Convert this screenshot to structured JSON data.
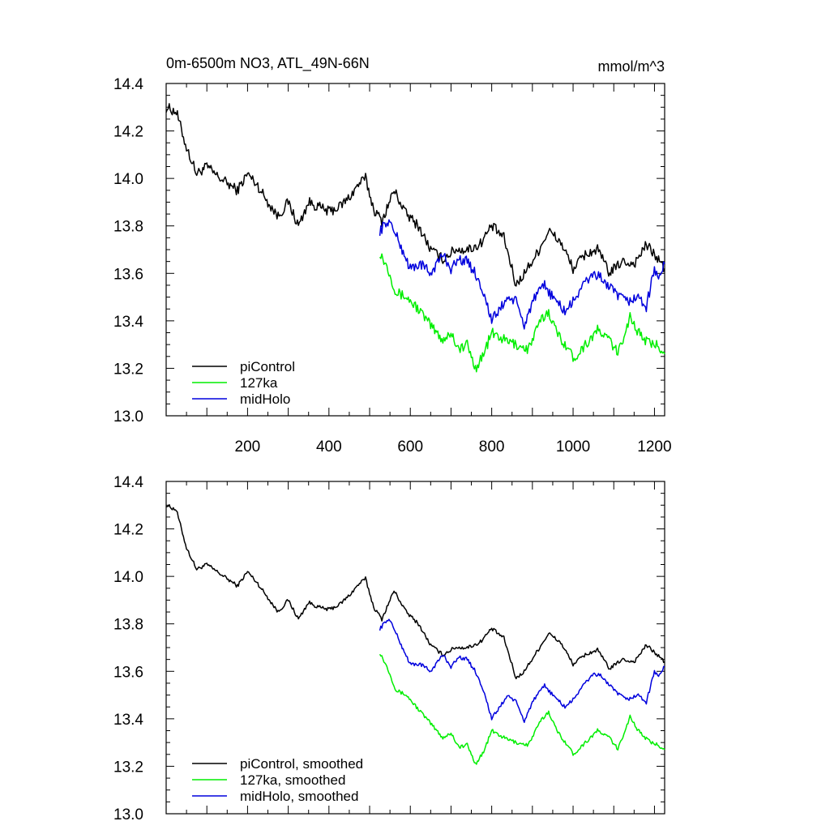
{
  "chart_data": [
    {
      "type": "line",
      "title": "0m-6500m NO3, ATL_49N-66N",
      "units_label": "mmol/m^3",
      "xlim": [
        0,
        1225
      ],
      "ylim": [
        13.0,
        14.4
      ],
      "x_ticks": [
        200,
        400,
        600,
        800,
        1000,
        1200
      ],
      "y_ticks": [
        13.0,
        13.2,
        13.4,
        13.6,
        13.8,
        14.0,
        14.2,
        14.4
      ],
      "legend_position": "bottom-left",
      "series": [
        {
          "name": "piControl",
          "color": "#000000",
          "x": [
            0,
            25,
            50,
            75,
            100,
            125,
            150,
            175,
            200,
            225,
            250,
            275,
            300,
            325,
            350,
            375,
            400,
            425,
            450,
            475,
            490,
            510,
            530,
            560,
            590,
            620,
            650,
            680,
            710,
            740,
            770,
            800,
            830,
            860,
            880,
            910,
            940,
            970,
            1000,
            1030,
            1060,
            1090,
            1120,
            1150,
            1180,
            1200,
            1225
          ],
          "y": [
            14.3,
            14.28,
            14.13,
            14.02,
            14.05,
            14.01,
            13.98,
            13.95,
            14.02,
            13.97,
            13.9,
            13.84,
            13.9,
            13.8,
            13.9,
            13.88,
            13.86,
            13.88,
            13.92,
            13.98,
            14.0,
            13.87,
            13.82,
            13.95,
            13.85,
            13.8,
            13.7,
            13.66,
            13.7,
            13.7,
            13.72,
            13.8,
            13.75,
            13.55,
            13.6,
            13.68,
            13.78,
            13.73,
            13.62,
            13.68,
            13.7,
            13.6,
            13.65,
            13.64,
            13.72,
            13.68,
            13.62
          ]
        },
        {
          "name": "127ka",
          "color": "#00ee00",
          "x": [
            525,
            545,
            565,
            590,
            620,
            650,
            680,
            700,
            720,
            740,
            760,
            780,
            800,
            830,
            860,
            890,
            920,
            940,
            960,
            990,
            1000,
            1030,
            1060,
            1090,
            1110,
            1140,
            1160,
            1190,
            1210,
            1225
          ],
          "y": [
            13.69,
            13.62,
            13.52,
            13.5,
            13.45,
            13.38,
            13.32,
            13.35,
            13.28,
            13.3,
            13.2,
            13.26,
            13.35,
            13.32,
            13.3,
            13.28,
            13.4,
            13.44,
            13.35,
            13.28,
            13.24,
            13.3,
            13.36,
            13.32,
            13.26,
            13.42,
            13.35,
            13.3,
            13.3,
            13.26
          ]
        },
        {
          "name": "midHolo",
          "color": "#0000dd",
          "x": [
            525,
            545,
            555,
            575,
            600,
            625,
            650,
            680,
            700,
            720,
            740,
            760,
            780,
            800,
            820,
            840,
            860,
            880,
            900,
            930,
            950,
            980,
            1000,
            1020,
            1050,
            1070,
            1100,
            1130,
            1160,
            1180,
            1200,
            1210,
            1225
          ],
          "y": [
            13.78,
            13.82,
            13.8,
            13.72,
            13.62,
            13.64,
            13.6,
            13.68,
            13.62,
            13.66,
            13.65,
            13.6,
            13.52,
            13.4,
            13.45,
            13.5,
            13.48,
            13.38,
            13.48,
            13.55,
            13.5,
            13.44,
            13.48,
            13.54,
            13.6,
            13.58,
            13.52,
            13.48,
            13.5,
            13.46,
            13.62,
            13.58,
            13.64
          ]
        }
      ]
    },
    {
      "type": "line",
      "xlim": [
        0,
        1225
      ],
      "ylim": [
        13.0,
        14.4
      ],
      "y_ticks": [
        13.0,
        13.2,
        13.4,
        13.6,
        13.8,
        14.0,
        14.2,
        14.4
      ],
      "legend_position": "bottom-left",
      "series": [
        {
          "name": "piControl, smoothed",
          "color": "#000000",
          "x": [
            0,
            25,
            50,
            75,
            100,
            125,
            150,
            175,
            200,
            225,
            250,
            275,
            300,
            325,
            350,
            375,
            400,
            425,
            450,
            475,
            490,
            510,
            530,
            560,
            590,
            620,
            650,
            680,
            710,
            740,
            770,
            800,
            830,
            860,
            880,
            910,
            940,
            970,
            1000,
            1030,
            1060,
            1090,
            1120,
            1150,
            1180,
            1200,
            1225
          ],
          "y": [
            14.3,
            14.28,
            14.12,
            14.03,
            14.05,
            14.02,
            13.99,
            13.96,
            14.02,
            13.97,
            13.91,
            13.85,
            13.9,
            13.82,
            13.89,
            13.87,
            13.86,
            13.88,
            13.92,
            13.97,
            13.99,
            13.87,
            13.82,
            13.94,
            13.85,
            13.8,
            13.71,
            13.67,
            13.7,
            13.7,
            13.72,
            13.78,
            13.74,
            13.57,
            13.6,
            13.68,
            13.76,
            13.72,
            13.63,
            13.67,
            13.69,
            13.61,
            13.65,
            13.64,
            13.71,
            13.68,
            13.64
          ]
        },
        {
          "name": "127ka, smoothed",
          "color": "#00ee00",
          "x": [
            525,
            545,
            565,
            590,
            620,
            650,
            680,
            700,
            720,
            740,
            760,
            780,
            800,
            830,
            860,
            890,
            920,
            940,
            960,
            990,
            1000,
            1030,
            1060,
            1090,
            1110,
            1140,
            1160,
            1190,
            1210,
            1225
          ],
          "y": [
            13.68,
            13.61,
            13.52,
            13.5,
            13.44,
            13.38,
            13.32,
            13.34,
            13.28,
            13.29,
            13.21,
            13.26,
            13.35,
            13.32,
            13.3,
            13.29,
            13.39,
            13.43,
            13.35,
            13.28,
            13.25,
            13.3,
            13.35,
            13.32,
            13.27,
            13.41,
            13.35,
            13.3,
            13.29,
            13.27
          ]
        },
        {
          "name": "midHolo, smoothed",
          "color": "#0000dd",
          "x": [
            525,
            545,
            555,
            575,
            600,
            625,
            650,
            680,
            700,
            720,
            740,
            760,
            780,
            800,
            820,
            840,
            860,
            880,
            900,
            930,
            950,
            980,
            1000,
            1020,
            1050,
            1070,
            1100,
            1130,
            1160,
            1180,
            1200,
            1210,
            1225
          ],
          "y": [
            13.78,
            13.82,
            13.8,
            13.72,
            13.63,
            13.63,
            13.6,
            13.67,
            13.62,
            13.66,
            13.65,
            13.6,
            13.52,
            13.4,
            13.45,
            13.5,
            13.47,
            13.39,
            13.47,
            13.54,
            13.5,
            13.45,
            13.48,
            13.53,
            13.59,
            13.58,
            13.52,
            13.48,
            13.5,
            13.47,
            13.6,
            13.58,
            13.62
          ]
        }
      ]
    }
  ]
}
